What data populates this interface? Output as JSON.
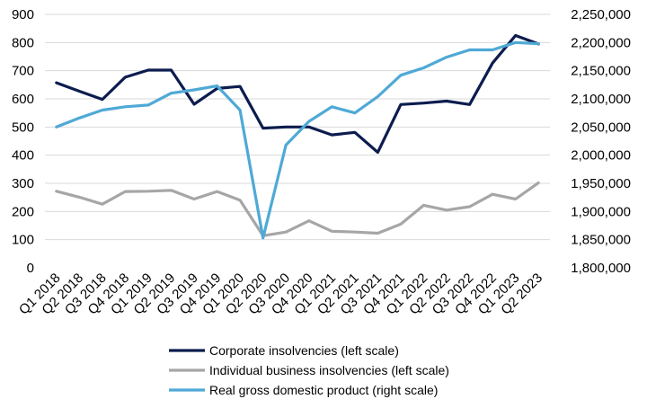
{
  "chart_data": {
    "type": "line",
    "title": "",
    "categories": [
      "Q1 2018",
      "Q2 2018",
      "Q3 2018",
      "Q4 2018",
      "Q1 2019",
      "Q2 2019",
      "Q3 2019",
      "Q4 2019",
      "Q1 2020",
      "Q2 2020",
      "Q3 2020",
      "Q4 2020",
      "Q1 2021",
      "Q2 2021",
      "Q3 2021",
      "Q4 2021",
      "Q1 2022",
      "Q2 2022",
      "Q3 2022",
      "Q4 2022",
      "Q1 2023",
      "Q2 2023"
    ],
    "left_axis": {
      "ylim": [
        0,
        900
      ],
      "ticks": [
        0,
        100,
        200,
        300,
        400,
        500,
        600,
        700,
        800,
        900
      ],
      "tick_labels": [
        "0",
        "100",
        "200",
        "300",
        "400",
        "500",
        "600",
        "700",
        "800",
        "900"
      ]
    },
    "right_axis": {
      "ylim": [
        1800000,
        2250000
      ],
      "ticks": [
        1800000,
        1850000,
        1900000,
        1950000,
        2000000,
        2050000,
        2100000,
        2150000,
        2200000,
        2250000
      ],
      "tick_labels": [
        "1,800,000",
        "1,850,000",
        "1,900,000",
        "1,950,000",
        "2,000,000",
        "2,050,000",
        "2,100,000",
        "2,150,000",
        "2,200,000",
        "2,250,000"
      ]
    },
    "grid": true,
    "legend_position": "bottom",
    "series": [
      {
        "name": "Corporate insolvencies (left scale)",
        "axis": "left",
        "color": "#0c1c4e",
        "values": [
          657,
          627,
          598,
          677,
          702,
          702,
          581,
          637,
          644,
          496,
          500,
          500,
          472,
          481,
          410,
          580,
          585,
          592,
          580,
          727,
          825,
          795
        ]
      },
      {
        "name": "Individual business insolvencies (left scale)",
        "axis": "left",
        "color": "#a6a6a6",
        "values": [
          272,
          251,
          226,
          271,
          272,
          275,
          244,
          271,
          240,
          114,
          127,
          167,
          130,
          127,
          123,
          155,
          222,
          205,
          217,
          261,
          244,
          302
        ]
      },
      {
        "name": "Real gross domestic product (right scale)",
        "axis": "right",
        "color": "#4fa9d6",
        "values": [
          2050000,
          2066000,
          2080000,
          2086000,
          2089000,
          2110000,
          2116000,
          2123000,
          2080000,
          1853000,
          2018000,
          2060000,
          2086000,
          2075000,
          2104000,
          2142000,
          2155000,
          2174000,
          2187000,
          2187000,
          2200000,
          2198000
        ]
      }
    ]
  }
}
